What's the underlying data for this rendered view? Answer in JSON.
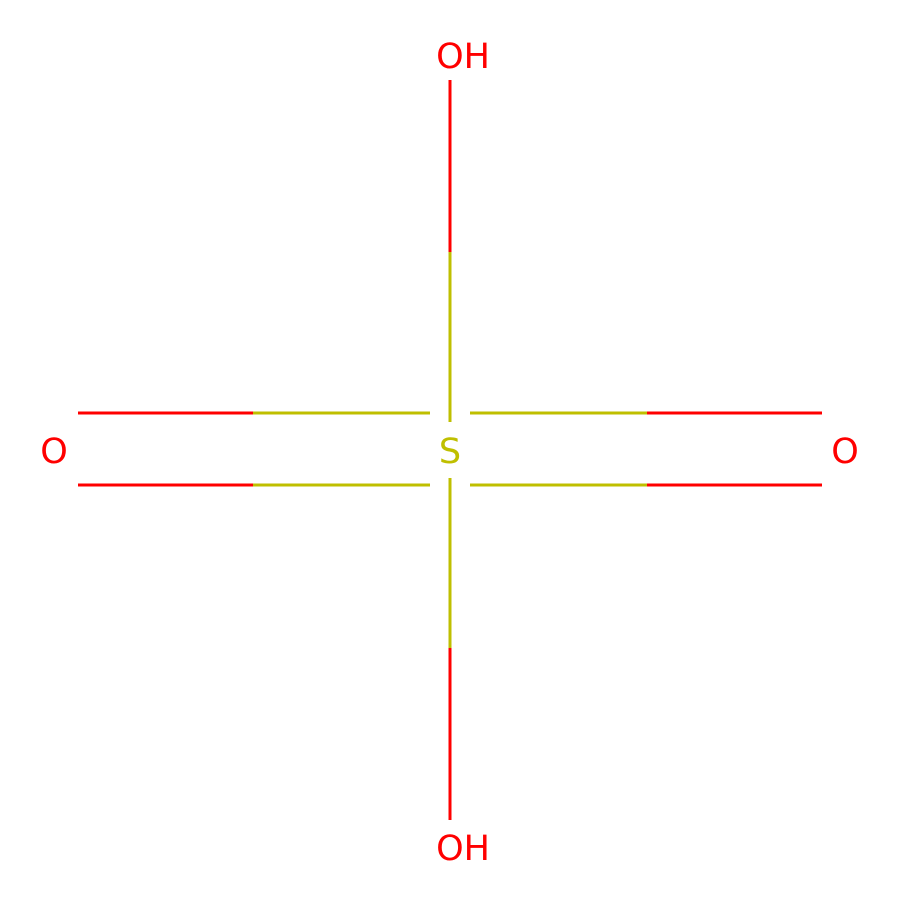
{
  "atoms": {
    "center": "S",
    "top": "OH",
    "bottom": "OH",
    "left": "O",
    "right": "O"
  },
  "colors": {
    "sulfur": "#BFBF00",
    "oxygen": "#FF0000",
    "background": "#FFFFFF"
  }
}
